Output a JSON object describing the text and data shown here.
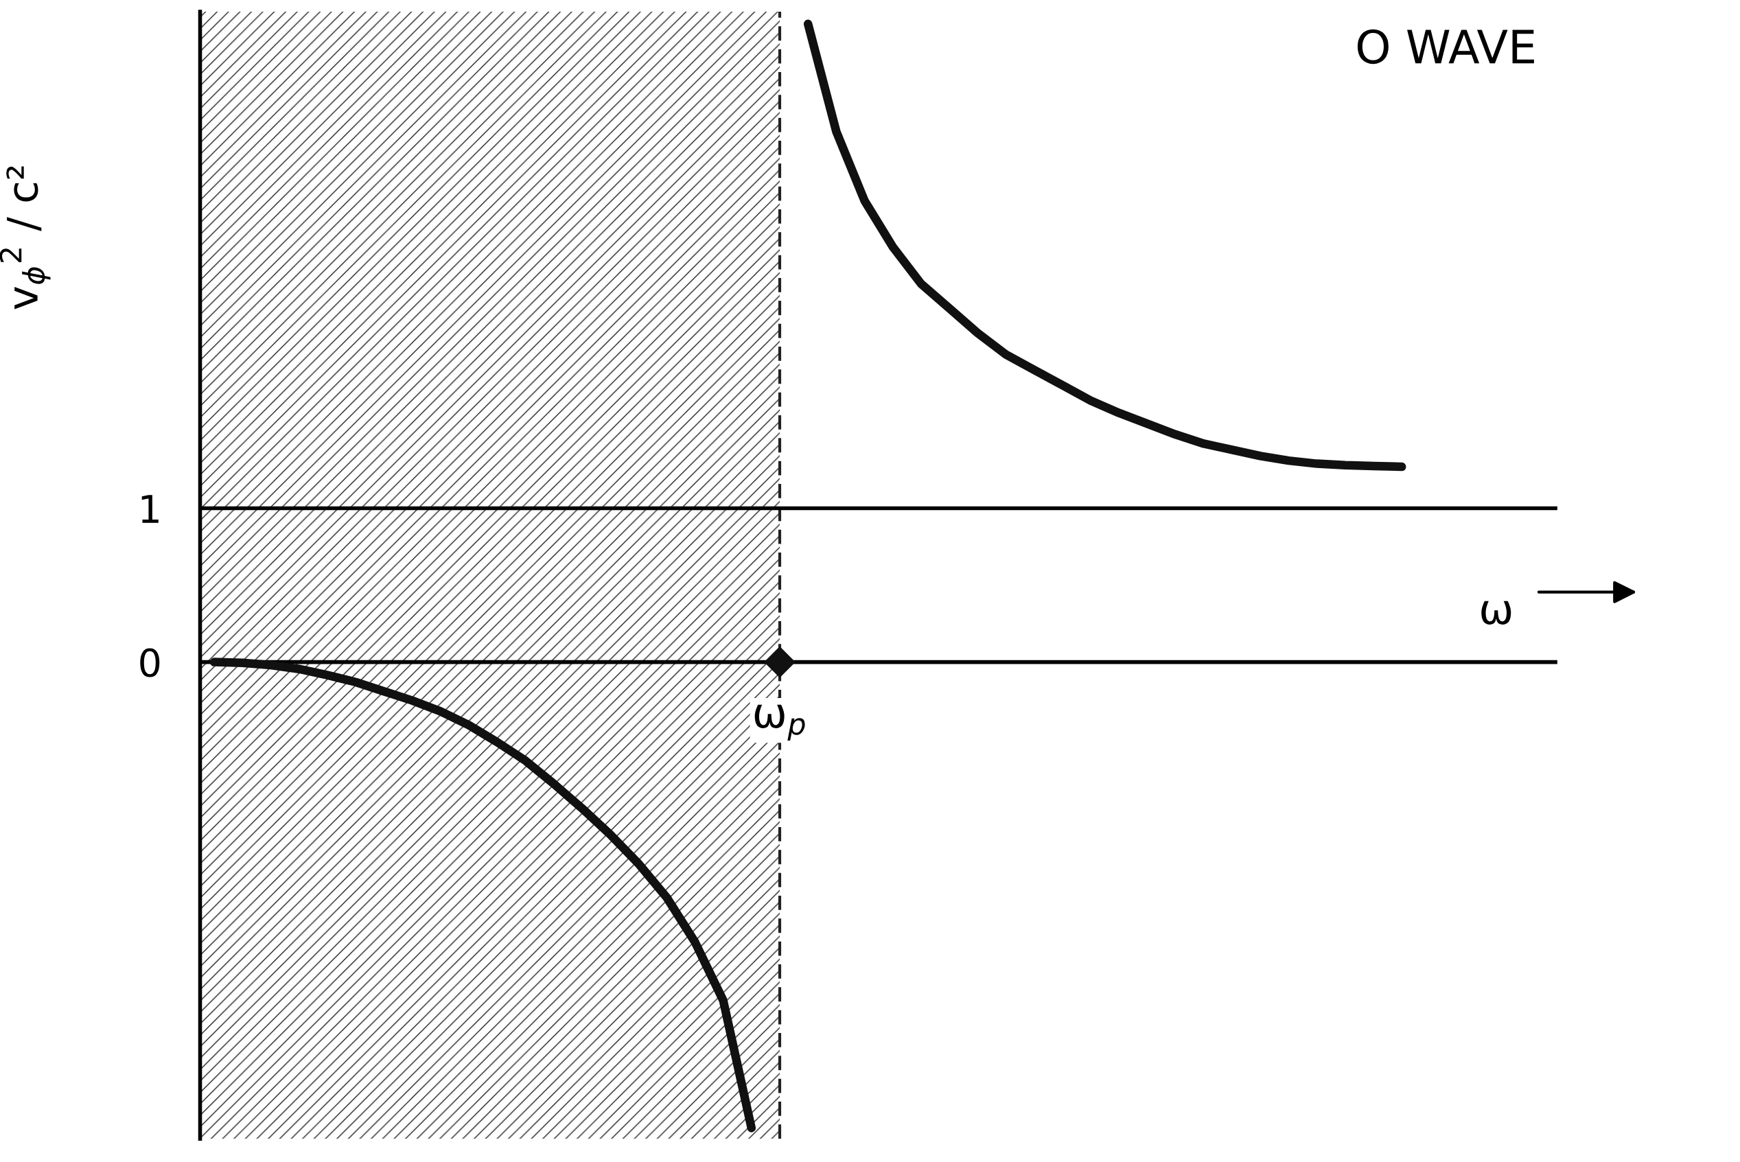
{
  "chart_data": {
    "type": "line",
    "xlabel": "ω",
    "ylabel": "v$_{ϕ}$$^{2}$ / c²",
    "categories": [
      null,
      null,
      null,
      null,
      null,
      null,
      null,
      null,
      null,
      null,
      null,
      null,
      null,
      null,
      null,
      null,
      null,
      null,
      null,
      null,
      "ω$_{p}$",
      null,
      null,
      null,
      null,
      null,
      null,
      null,
      null,
      null,
      null,
      null,
      null,
      null,
      null,
      null,
      null,
      null,
      null,
      null,
      null,
      null,
      null,
      null,
      null,
      null,
      null,
      null
    ],
    "ylim": [
      -3.1,
      4.23
    ],
    "yticks": [
      0,
      1
    ],
    "series": [
      {
        "color": "#111111",
        "values": [
          0,
          -0.005,
          -0.02,
          -0.045,
          -0.085,
          -0.13,
          -0.19,
          -0.25,
          -0.32,
          -0.41,
          -0.52,
          -0.64,
          -0.79,
          -0.95,
          -1.12,
          -1.31,
          -1.53,
          -1.82,
          -2.2,
          -3.03,
          null,
          null,
          null,
          null,
          null,
          null,
          null,
          null,
          null,
          null,
          null,
          null,
          null,
          null,
          null,
          null,
          null,
          null,
          null,
          null,
          null,
          null,
          null,
          null,
          null,
          null,
          null,
          null
        ]
      },
      {
        "color": "#111111",
        "values": [
          null,
          null,
          null,
          null,
          null,
          null,
          null,
          null,
          null,
          null,
          null,
          null,
          null,
          null,
          null,
          null,
          null,
          null,
          null,
          null,
          null,
          4.15,
          3.45,
          3.0,
          2.7,
          2.46,
          2.3,
          2.14,
          2.0,
          1.9,
          1.8,
          1.7,
          1.62,
          1.55,
          1.48,
          1.42,
          1.38,
          1.34,
          1.31,
          1.29,
          1.28,
          1.275,
          1.27,
          null,
          null,
          null,
          null,
          null
        ]
      },
      {
        "type": "scatter",
        "marker": "diamond",
        "color": "#111111",
        "x": [
          "ω$_{p}$"
        ],
        "values": [
          0
        ]
      }
    ],
    "ref_lines": [
      {
        "axis": "y",
        "value": 1,
        "color": "#000000"
      },
      {
        "axis": "y",
        "value": 0,
        "color": "#000000"
      }
    ],
    "annotations": [
      "O WAVE"
    ],
    "grid": false,
    "legend": false
  }
}
